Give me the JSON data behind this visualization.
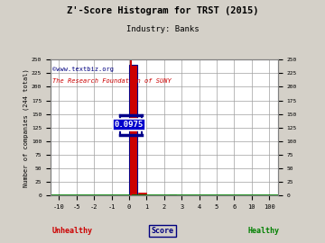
{
  "title": "Z'-Score Histogram for TRST (2015)",
  "subtitle": "Industry: Banks",
  "watermark1": "©www.textbiz.org",
  "watermark2": "The Research Foundation of SUNY",
  "ylabel_left": "Number of companies (244 total)",
  "xlabel": "Score",
  "unhealthy_label": "Unhealthy",
  "healthy_label": "Healthy",
  "annotation": "0.0975",
  "background_color": "#d4d0c8",
  "plot_bg_color": "#ffffff",
  "grid_color": "#a0a0a0",
  "xtick_positions": [
    -10,
    -5,
    -2,
    -1,
    0,
    1,
    2,
    3,
    4,
    5,
    6,
    10,
    100
  ],
  "xtick_labels": [
    "-10",
    "-5",
    "-2",
    "-1",
    "0",
    "1",
    "2",
    "3",
    "4",
    "5",
    "6",
    "10",
    "100"
  ],
  "ylim": [
    0,
    250
  ],
  "yticks": [
    0,
    25,
    50,
    75,
    100,
    125,
    150,
    175,
    200,
    225,
    250
  ],
  "trst_score": 0.0975,
  "title_color": "#000000",
  "subtitle_color": "#000000",
  "watermark1_color": "#000080",
  "watermark2_color": "#cc0000",
  "unhealthy_color": "#cc0000",
  "healthy_color": "#008000",
  "annotation_bg": "#0000cd",
  "annotation_text_color": "#ffffff",
  "annotation_border_color": "#ffffff",
  "bar_color_main": "#cc0000",
  "bar_outline_color": "#00008b",
  "indicator_line_color": "#cc0000",
  "indicator_bar_color": "#00008b",
  "green_line_color": "#008000"
}
